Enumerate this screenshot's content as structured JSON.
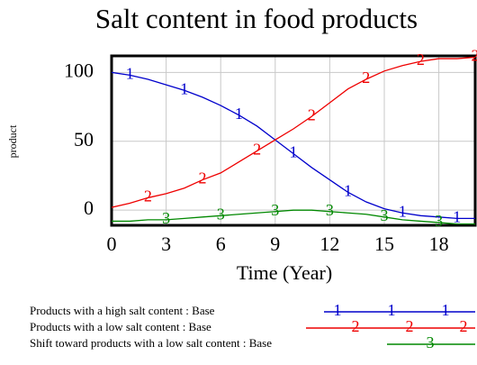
{
  "chart_data": {
    "type": "line",
    "title": "Salt content in food products",
    "x_label": "Time (Year)",
    "y_label": "product",
    "x": [
      0,
      1,
      2,
      3,
      4,
      5,
      6,
      7,
      8,
      9,
      10,
      11,
      12,
      13,
      14,
      15,
      16,
      17,
      18,
      19,
      20
    ],
    "series": [
      {
        "name": "Products with a high salt content : Base",
        "marker": "1",
        "color": "#0000cc",
        "values": [
          100,
          98,
          95,
          91,
          87,
          82,
          76,
          69,
          61,
          51,
          41,
          31,
          22,
          13,
          6,
          1,
          -2,
          -4,
          -5,
          -6,
          -6
        ]
      },
      {
        "name": "Products with a low salt content : Base",
        "marker": "2",
        "color": "#ee0000",
        "values": [
          2,
          5,
          9,
          12,
          16,
          22,
          27,
          35,
          43,
          51,
          59,
          68,
          78,
          88,
          95,
          101,
          105,
          108,
          110,
          110,
          111
        ]
      },
      {
        "name": "Shift toward products with a low salt content : Base",
        "marker": "3",
        "color": "#008800",
        "values": [
          -8,
          -8,
          -7,
          -7,
          -6,
          -5,
          -4,
          -3,
          -2,
          -1,
          0,
          0,
          -1,
          -2,
          -3,
          -5,
          -7,
          -8,
          -9,
          -10,
          -10
        ]
      }
    ],
    "xlim": [
      0,
      20
    ],
    "ylim": [
      -11,
      112
    ],
    "xticks": [
      0,
      3,
      6,
      9,
      12,
      15,
      18
    ],
    "yticks": [
      0,
      50,
      100
    ],
    "grid": true
  }
}
